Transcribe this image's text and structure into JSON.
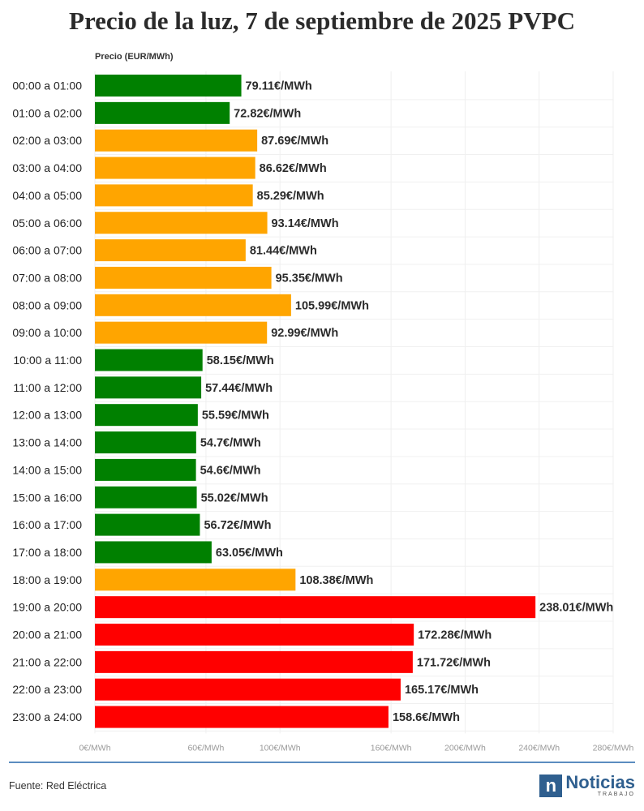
{
  "title": "Precio de la luz, 7 de septiembre de 2025 PVPC",
  "source": "Fuente: Red Eléctrica",
  "logo": {
    "mark": "n",
    "name": "Noticias",
    "sub": "TRABAJO"
  },
  "colors": {
    "green": "#008000",
    "orange": "#FFA500",
    "red": "#FF0000",
    "rule": "#5b8cc0",
    "brand": "#2f5f8f"
  },
  "chart_data": {
    "type": "bar",
    "orientation": "horizontal",
    "title": "Precio de la luz, 7 de septiembre de 2025 PVPC",
    "ylabel": "Precio (EUR/MWh)",
    "xlim": [
      0,
      280
    ],
    "ticks": [
      0,
      60,
      100,
      160,
      200,
      240,
      280
    ],
    "tick_labels": [
      "0€/MWh",
      "60€/MWh",
      "100€/MWh",
      "160€/MWh",
      "200€/MWh",
      "240€/MWh",
      "280€/MWh"
    ],
    "grid": true,
    "categories": [
      "00:00 a 01:00",
      "01:00 a 02:00",
      "02:00 a 03:00",
      "03:00 a 04:00",
      "04:00 a 05:00",
      "05:00 a 06:00",
      "06:00 a 07:00",
      "07:00 a 08:00",
      "08:00 a 09:00",
      "09:00 a 10:00",
      "10:00 a 11:00",
      "11:00 a 12:00",
      "12:00 a 13:00",
      "13:00 a 14:00",
      "14:00 a 15:00",
      "15:00 a 16:00",
      "16:00 a 17:00",
      "17:00 a 18:00",
      "18:00 a 19:00",
      "19:00 a 20:00",
      "20:00 a 21:00",
      "21:00 a 22:00",
      "22:00 a 23:00",
      "23:00 a 24:00"
    ],
    "values": [
      79.11,
      72.82,
      87.69,
      86.62,
      85.29,
      93.14,
      81.44,
      95.35,
      105.99,
      92.99,
      58.15,
      57.44,
      55.59,
      54.7,
      54.6,
      55.02,
      56.72,
      63.05,
      108.38,
      238.01,
      172.28,
      171.72,
      165.17,
      158.6
    ],
    "value_labels": [
      "79.11€/MWh",
      "72.82€/MWh",
      "87.69€/MWh",
      "86.62€/MWh",
      "85.29€/MWh",
      "93.14€/MWh",
      "81.44€/MWh",
      "95.35€/MWh",
      "105.99€/MWh",
      "92.99€/MWh",
      "58.15€/MWh",
      "57.44€/MWh",
      "55.59€/MWh",
      "54.7€/MWh",
      "54.6€/MWh",
      "55.02€/MWh",
      "56.72€/MWh",
      "63.05€/MWh",
      "108.38€/MWh",
      "238.01€/MWh",
      "172.28€/MWh",
      "171.72€/MWh",
      "165.17€/MWh",
      "158.6€/MWh"
    ],
    "bar_colors": [
      "green",
      "green",
      "orange",
      "orange",
      "orange",
      "orange",
      "orange",
      "orange",
      "orange",
      "orange",
      "green",
      "green",
      "green",
      "green",
      "green",
      "green",
      "green",
      "green",
      "orange",
      "red",
      "red",
      "red",
      "red",
      "red"
    ]
  }
}
